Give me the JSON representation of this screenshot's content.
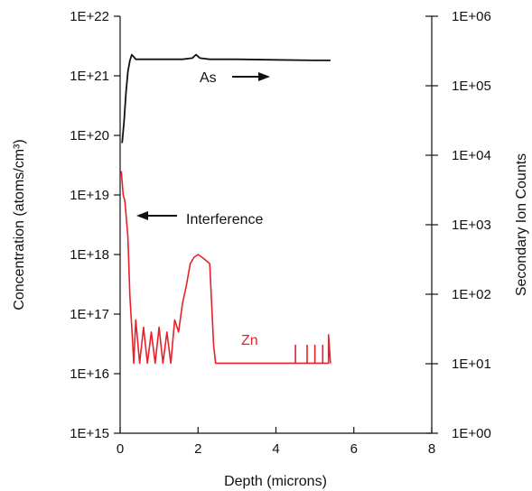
{
  "chart_data": {
    "type": "line",
    "xlabel": "Depth (microns)",
    "ylabel_left": "Concentration (atoms/cm³)",
    "ylabel_right": "Secondary Ion Counts",
    "xlim": [
      0,
      8
    ],
    "ylim_left": [
      1000000000000000.0,
      1e+22
    ],
    "ylim_right": [
      1.0,
      1000000.0
    ],
    "y_scale": "log",
    "grid": false,
    "x_ticks": [
      "0",
      "2",
      "4",
      "6",
      "8"
    ],
    "y_left_ticks": [
      "1E+15",
      "1E+16",
      "1E+17",
      "1E+18",
      "1E+19",
      "1E+20",
      "1E+21",
      "1E+22"
    ],
    "y_right_ticks": [
      "1E+00",
      "1E+01",
      "1E+02",
      "1E+03",
      "1E+04",
      "1E+05",
      "1E+06"
    ],
    "series": [
      {
        "name": "As",
        "axis": "right",
        "color": "#111111",
        "x": [
          0.05,
          0.1,
          0.15,
          0.2,
          0.25,
          0.3,
          0.35,
          0.4,
          0.5,
          0.8,
          1.2,
          1.6,
          1.85,
          1.95,
          2.05,
          2.3,
          3.0,
          4.0,
          5.0,
          5.4
        ],
        "y": [
          15000,
          30000,
          80000,
          160000,
          230000,
          280000,
          260000,
          240000,
          240000,
          240000,
          240000,
          240000,
          250000,
          280000,
          250000,
          240000,
          240000,
          236000,
          232000,
          232000
        ]
      },
      {
        "name": "Zn",
        "axis": "left",
        "color": "#e8202a",
        "x": [
          0.03,
          0.06,
          0.08,
          0.12,
          0.2,
          0.25,
          0.3,
          0.35,
          0.4,
          0.5,
          0.6,
          0.7,
          0.8,
          0.9,
          1.0,
          1.1,
          1.2,
          1.3,
          1.4,
          1.5,
          1.6,
          1.7,
          1.8,
          1.9,
          2.0,
          2.1,
          2.2,
          2.3,
          2.4,
          2.45,
          3.0,
          4.0,
          4.5,
          4.5,
          4.5,
          4.8,
          4.8,
          4.8,
          5.0,
          5.0,
          5.0,
          5.2,
          5.2,
          5.2,
          5.35,
          5.35,
          5.4
        ],
        "y": [
          2.5e+19,
          1.4e+19,
          1e+19,
          8e+18,
          2e+18,
          2e+17,
          6e+16,
          1.5e+16,
          8e+16,
          1.5e+16,
          6e+16,
          1.5e+16,
          5e+16,
          1.5e+16,
          6e+16,
          1.5e+16,
          5e+16,
          1.5e+16,
          8e+16,
          5e+16,
          1.5e+17,
          3e+17,
          7e+17,
          9e+17,
          1e+18,
          9e+17,
          8e+17,
          7e+17,
          3e+16,
          1.5e+16,
          1.5e+16,
          1.5e+16,
          1.5e+16,
          3e+16,
          1.5e+16,
          1.5e+16,
          3e+16,
          1.5e+16,
          1.5e+16,
          3e+16,
          1.5e+16,
          1.5e+16,
          3e+16,
          1.5e+16,
          1.5e+16,
          4.5e+16,
          1.5e+16
        ]
      }
    ],
    "annotations": [
      {
        "text": "As",
        "arrow": "right",
        "color": "#111111"
      },
      {
        "text": "Interference",
        "arrow": "left",
        "color": "#111111"
      },
      {
        "text": "Zn",
        "color": "#e8202a"
      }
    ]
  }
}
